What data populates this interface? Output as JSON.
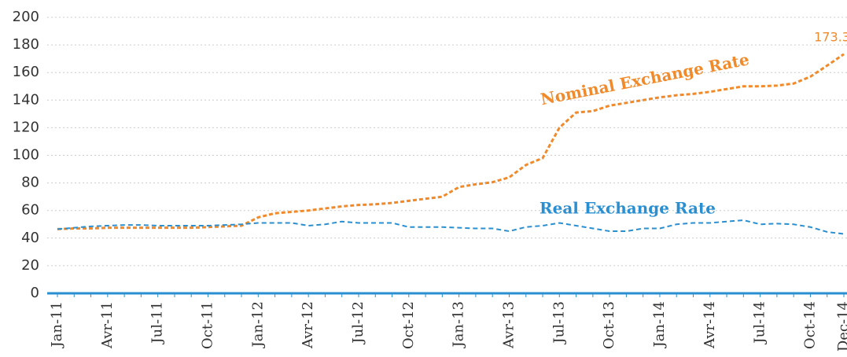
{
  "chart_data": {
    "type": "line",
    "categories": [
      "Jan-11",
      null,
      null,
      "Avr-11",
      null,
      null,
      "Jul-11",
      null,
      null,
      "Oct-11",
      null,
      null,
      "Jan-12",
      null,
      null,
      "Avr-12",
      null,
      null,
      "Jul-12",
      null,
      null,
      "Oct-12",
      null,
      null,
      "Jan-13",
      null,
      null,
      "Avr-13",
      null,
      null,
      "Jul-13",
      null,
      null,
      "Oct-13",
      null,
      null,
      "Jan-14",
      null,
      null,
      "Avr-14",
      null,
      null,
      "Jul-14",
      null,
      null,
      "Oct-14",
      null,
      "Dec-14"
    ],
    "series": [
      {
        "name": "Nominal Exchange Rate",
        "color": "#f08a2a",
        "values": [
          46.5,
          47,
          47,
          47.5,
          47.5,
          47.5,
          47.5,
          47.5,
          47.5,
          48,
          48.5,
          49,
          55,
          58,
          59,
          60,
          61.5,
          63,
          64,
          64.5,
          65.5,
          67,
          68.5,
          70,
          77,
          79,
          80.5,
          84,
          93,
          98,
          120,
          131,
          132,
          136,
          138,
          140,
          142,
          143.5,
          144.5,
          146,
          148,
          150,
          150,
          150.5,
          152,
          157,
          165,
          173.3
        ]
      },
      {
        "name": "Real Exchange Rate",
        "color": "#2a8fd0",
        "values": [
          46.5,
          47.5,
          48.5,
          49,
          49.5,
          49.5,
          49,
          49,
          49,
          49,
          49.5,
          50,
          51,
          51,
          51,
          49,
          50,
          52,
          51,
          51,
          51,
          48,
          48,
          48,
          47.5,
          47,
          47,
          45,
          48,
          49,
          51,
          49,
          47,
          45,
          45,
          47,
          47,
          50,
          51,
          51,
          52,
          53,
          50,
          50.5,
          50,
          48,
          44.5,
          43
        ]
      }
    ],
    "ylim": [
      0,
      200
    ],
    "yticks": [
      0,
      20,
      40,
      60,
      80,
      100,
      120,
      140,
      160,
      180,
      200
    ],
    "grid": true
  }
}
